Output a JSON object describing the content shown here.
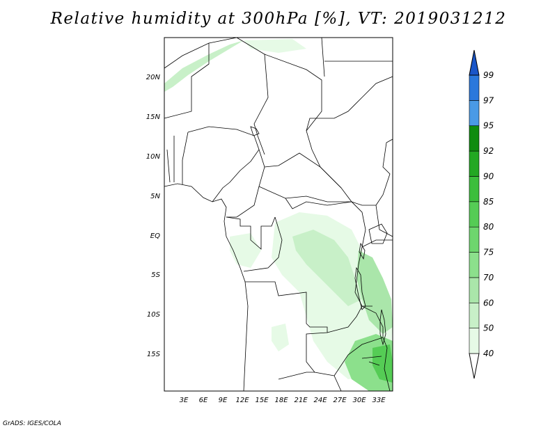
{
  "title": "Relative humidity at 300hPa [%], VT: 2019031212",
  "credit": "GrADS: IGES/COLA",
  "map": {
    "lat_labels": [
      "20N",
      "15N",
      "10N",
      "5N",
      "EQ",
      "5S",
      "10S",
      "15S"
    ],
    "lon_labels": [
      "3E",
      "6E",
      "9E",
      "12E",
      "15E",
      "18E",
      "21E",
      "24E",
      "27E",
      "30E",
      "33E"
    ],
    "lon_range": [
      0,
      35
    ],
    "lat_range": [
      -20,
      25
    ]
  },
  "colorbar": {
    "levels": [
      "40",
      "50",
      "60",
      "70",
      "75",
      "80",
      "85",
      "90",
      "92",
      "95",
      "97",
      "99"
    ],
    "colors": [
      "#e6fae6",
      "#c8f0c8",
      "#aae6aa",
      "#8ce08c",
      "#6ed66e",
      "#55cc55",
      "#3cbe3c",
      "#23a823",
      "#0f8c0f",
      "#4a9ae6",
      "#2a78dc",
      "#1a56c8"
    ]
  }
}
